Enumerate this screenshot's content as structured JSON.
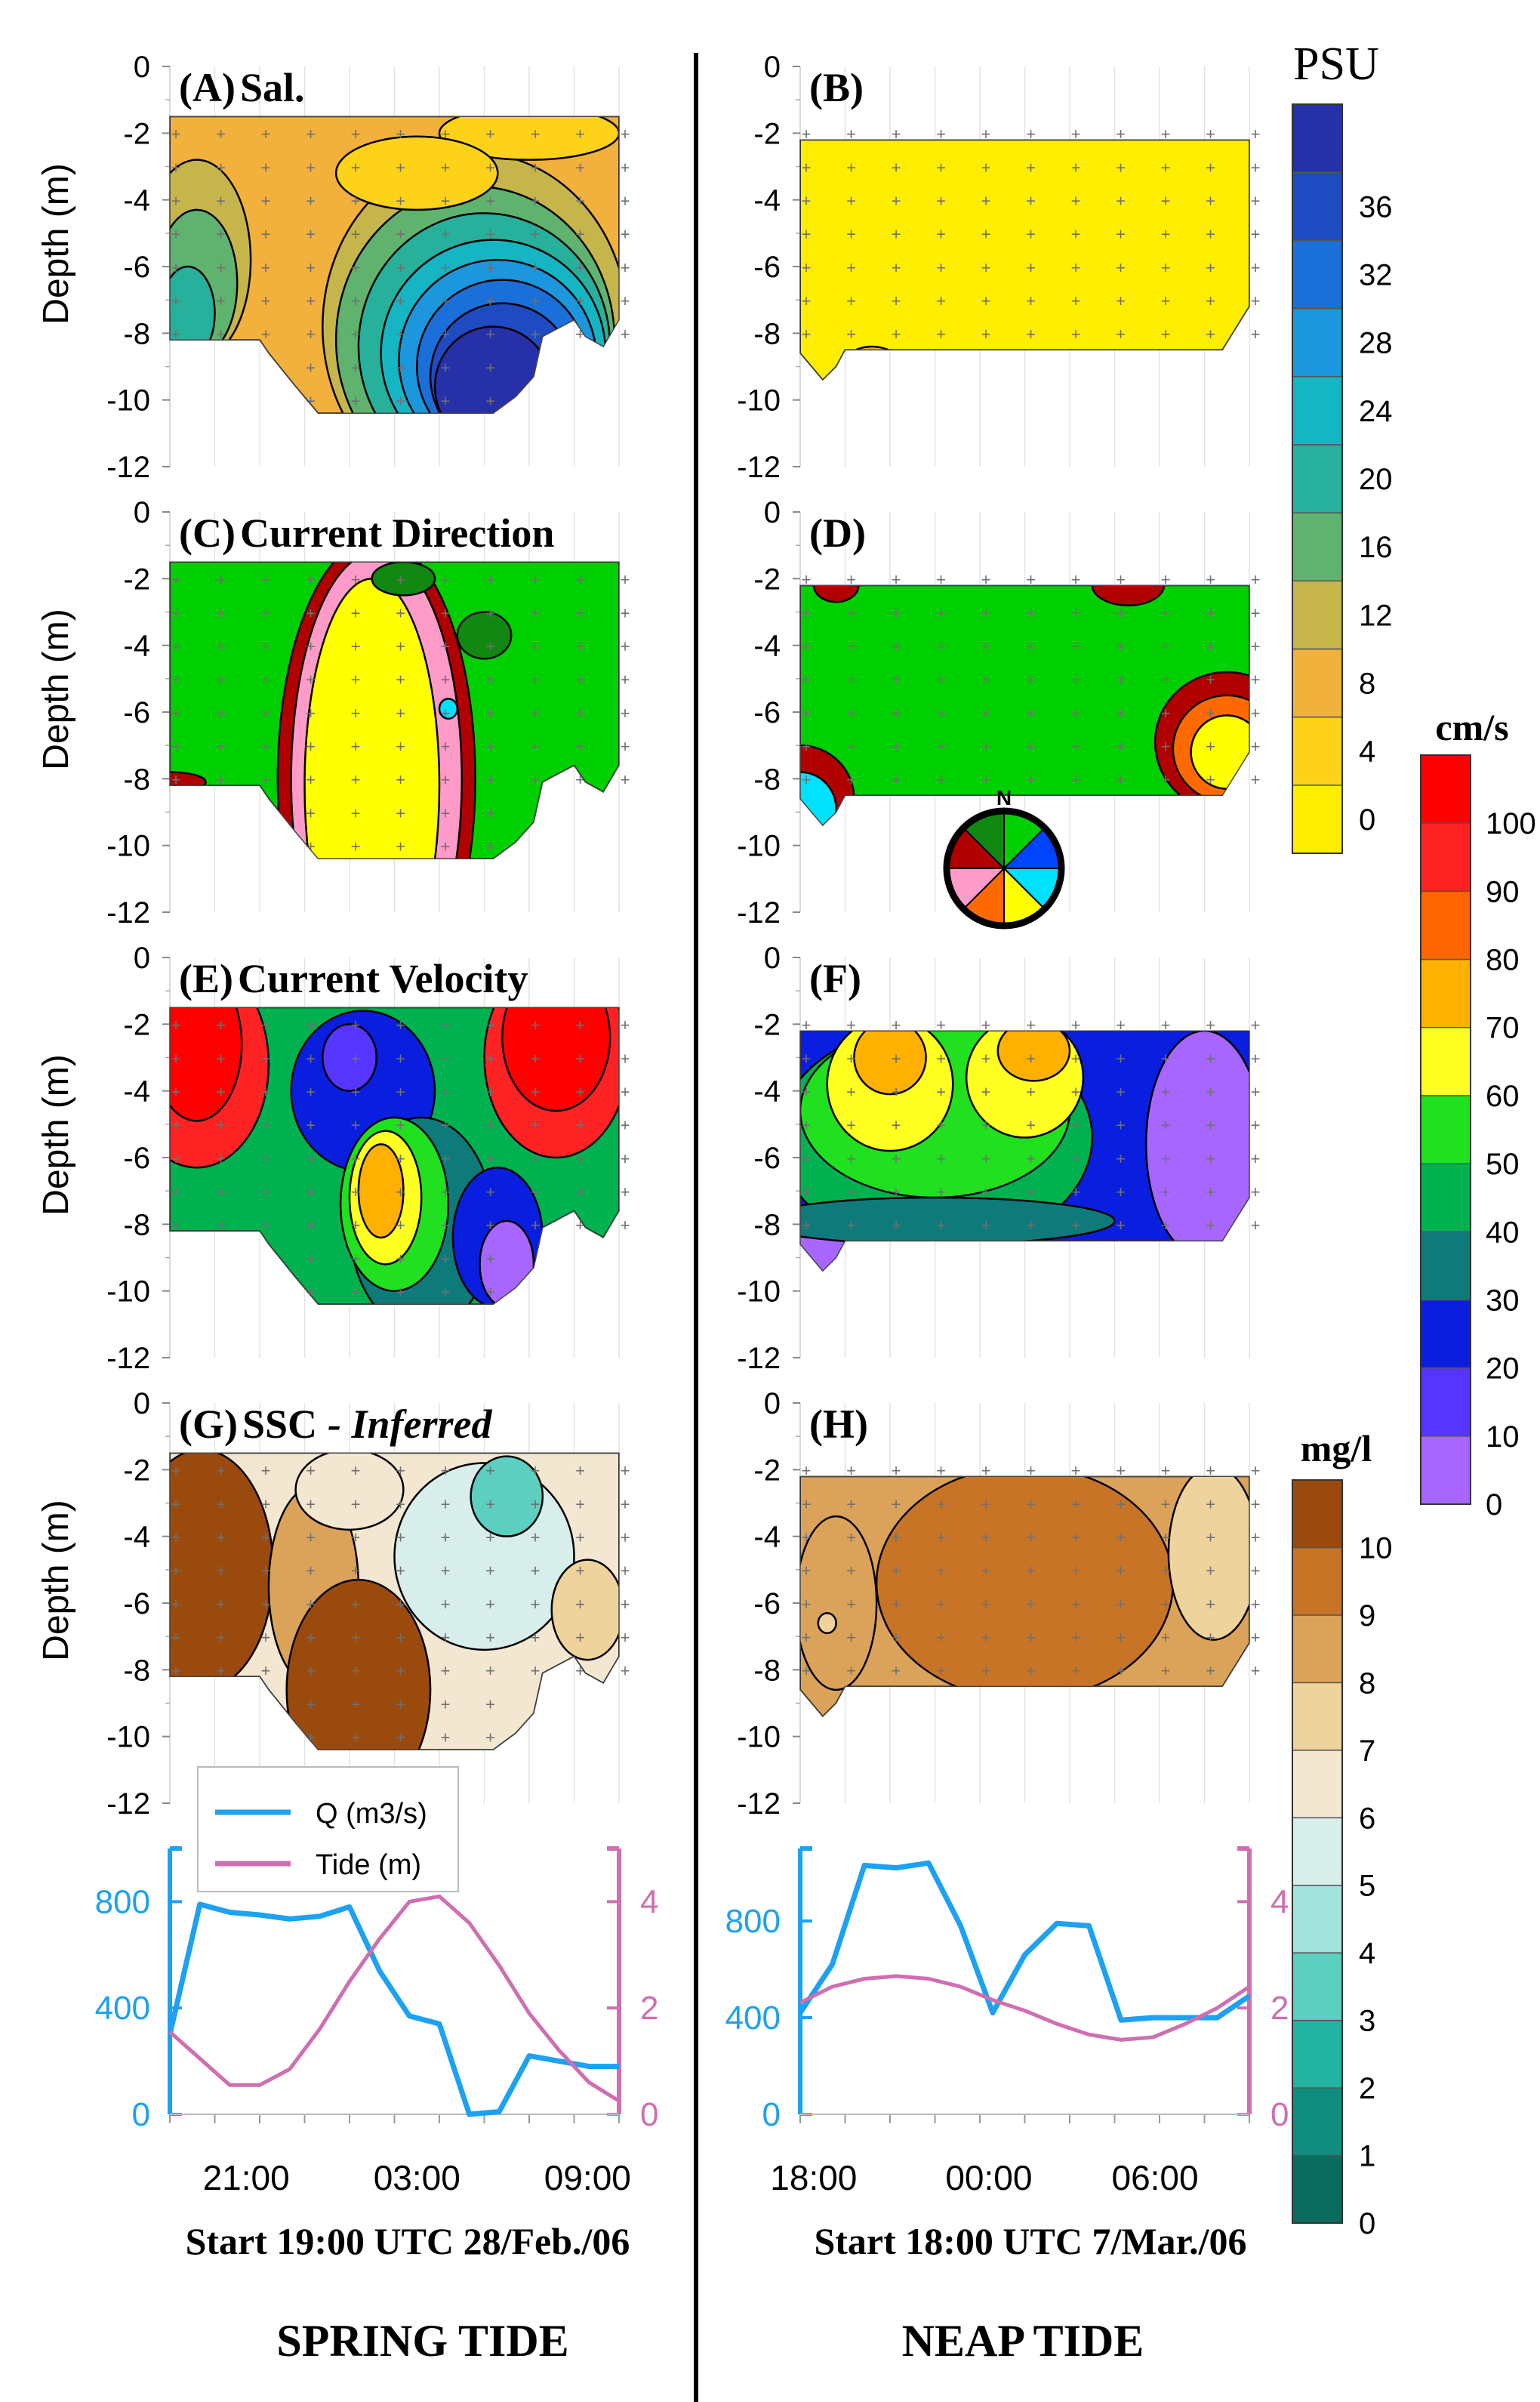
{
  "figure": {
    "panels": [
      {
        "id": "A",
        "label": "(A)",
        "title": "Sal.",
        "title_italic": "",
        "col": 0,
        "row": 0,
        "kind": "sal-spring"
      },
      {
        "id": "B",
        "label": "(B)",
        "title": "",
        "title_italic": "",
        "col": 1,
        "row": 0,
        "kind": "sal-neap"
      },
      {
        "id": "C",
        "label": "(C)",
        "title": "Current Direction",
        "title_italic": "",
        "col": 0,
        "row": 1,
        "kind": "dir-spring"
      },
      {
        "id": "D",
        "label": "(D)",
        "title": "",
        "title_italic": "",
        "col": 1,
        "row": 1,
        "kind": "dir-neap"
      },
      {
        "id": "E",
        "label": "(E)",
        "title": "Current Velocity",
        "title_italic": "",
        "col": 0,
        "row": 2,
        "kind": "vel-spring"
      },
      {
        "id": "F",
        "label": "(F)",
        "title": "",
        "title_italic": "",
        "col": 1,
        "row": 2,
        "kind": "vel-neap"
      },
      {
        "id": "G",
        "label": "(G)",
        "title": "SSC",
        "title_italic": "- Inferred",
        "col": 0,
        "row": 3,
        "kind": "ssc-spring"
      },
      {
        "id": "H",
        "label": "(H)",
        "title": "",
        "title_italic": "",
        "col": 1,
        "row": 3,
        "kind": "ssc-neap"
      }
    ],
    "depth_axis": {
      "label": "Depth (m)",
      "ticks": [
        "0",
        "-2",
        "-4",
        "-6",
        "-8",
        "-10",
        "-12"
      ]
    },
    "compass": {
      "north_label": "N",
      "sector_colors": [
        "#00d000",
        "#0044ff",
        "#00e0ff",
        "#ffff00",
        "#ff6a00",
        "#ff9bc8",
        "#b00000",
        "#118811"
      ]
    },
    "columns": [
      {
        "x_ticks": [
          "21:00",
          "03:00",
          "09:00"
        ],
        "start_label": "Start 19:00 UTC 28/Feb./06",
        "tide_label": "SPRING TIDE"
      },
      {
        "x_ticks": [
          "18:00",
          "00:00",
          "06:00"
        ],
        "start_label": "Start 18:00 UTC  7/Mar./06",
        "tide_label": "NEAP TIDE"
      }
    ]
  },
  "colorbars": [
    {
      "unit": "PSU",
      "ticks": [
        "0",
        "4",
        "8",
        "12",
        "16",
        "20",
        "24",
        "28",
        "32",
        "36"
      ],
      "colors": [
        "#ffee00",
        "#ffd21a",
        "#f2b03c",
        "#c6b54b",
        "#5fb36e",
        "#27b09c",
        "#15b5c4",
        "#1c96dd",
        "#1a6fd8",
        "#1f4bc2",
        "#2630a8"
      ]
    },
    {
      "unit": "cm/s",
      "ticks": [
        "0",
        "10",
        "20",
        "30",
        "40",
        "50",
        "60",
        "70",
        "80",
        "90",
        "100"
      ],
      "colors": [
        "#a766ff",
        "#5535ff",
        "#0a1ee0",
        "#0e7a7a",
        "#00b14f",
        "#20e020",
        "#ffff22",
        "#ffb000",
        "#ff6600",
        "#ff2222",
        "#ff0000"
      ]
    },
    {
      "unit": "mg/l",
      "ticks": [
        "0",
        "1",
        "2",
        "3",
        "4",
        "5",
        "6",
        "7",
        "8",
        "9",
        "10"
      ],
      "colors": [
        "#0b6b5e",
        "#0f8e80",
        "#22b3a1",
        "#5ccfc0",
        "#a2e4dd",
        "#d7eeeb",
        "#f3e7d2",
        "#efd39c",
        "#dba35a",
        "#c87427",
        "#9b4a0e"
      ]
    }
  ],
  "chart_data": [
    {
      "type": "line",
      "panel": "spring-discharge-tide",
      "x": [
        19,
        20,
        21,
        22,
        23,
        24,
        25,
        26,
        27,
        28,
        29,
        30,
        31,
        32,
        33,
        34
      ],
      "xlabel": "Start 19:00 UTC 28/Feb./06",
      "x_tick_labels": [
        "21:00",
        "03:00",
        "09:00"
      ],
      "series": [
        {
          "name": "Q (m3/s)",
          "axis": "left",
          "color": "#1da1f2",
          "values": [
            300,
            790,
            760,
            750,
            735,
            745,
            780,
            540,
            370,
            340,
            0,
            10,
            220,
            200,
            180,
            180
          ]
        },
        {
          "name": "Tide (m)",
          "axis": "right",
          "color": "#cf6eb0",
          "values": [
            1.55,
            1.05,
            0.55,
            0.55,
            0.85,
            1.6,
            2.5,
            3.3,
            4.0,
            4.1,
            3.6,
            2.8,
            1.9,
            1.2,
            0.6,
            0.25
          ]
        }
      ],
      "ylim_left": [
        0,
        1000
      ],
      "y_ticks_left": [
        "0",
        "400",
        "800"
      ],
      "ylim_right": [
        0,
        5
      ],
      "y_ticks_right": [
        "0",
        "2",
        "4"
      ]
    },
    {
      "type": "line",
      "panel": "neap-discharge-tide",
      "x": [
        18,
        19,
        20,
        21,
        22,
        23,
        24,
        25,
        26,
        27,
        28,
        29,
        30,
        31,
        32
      ],
      "xlabel": "Start 18:00 UTC  7/Mar./06",
      "x_tick_labels": [
        "18:00",
        "00:00",
        "06:00"
      ],
      "series": [
        {
          "name": "Q (m3/s)",
          "axis": "left",
          "color": "#1da1f2",
          "values": [
            420,
            620,
            1030,
            1020,
            1040,
            780,
            420,
            660,
            790,
            780,
            390,
            400,
            400,
            400,
            490
          ]
        },
        {
          "name": "Tide (m)",
          "axis": "right",
          "color": "#cf6eb0",
          "values": [
            2.1,
            2.4,
            2.55,
            2.6,
            2.55,
            2.4,
            2.15,
            1.95,
            1.7,
            1.5,
            1.4,
            1.45,
            1.7,
            2.0,
            2.4
          ]
        }
      ],
      "ylim_left": [
        0,
        1100
      ],
      "y_ticks_left": [
        "0",
        "400",
        "800"
      ],
      "ylim_right": [
        0,
        5
      ],
      "y_ticks_right": [
        "0",
        "2",
        "4"
      ]
    }
  ],
  "legend": {
    "items": [
      {
        "label": "Q (m3/s)",
        "color": "#1da1f2"
      },
      {
        "label": "Tide (m)",
        "color": "#cf6eb0"
      }
    ]
  }
}
